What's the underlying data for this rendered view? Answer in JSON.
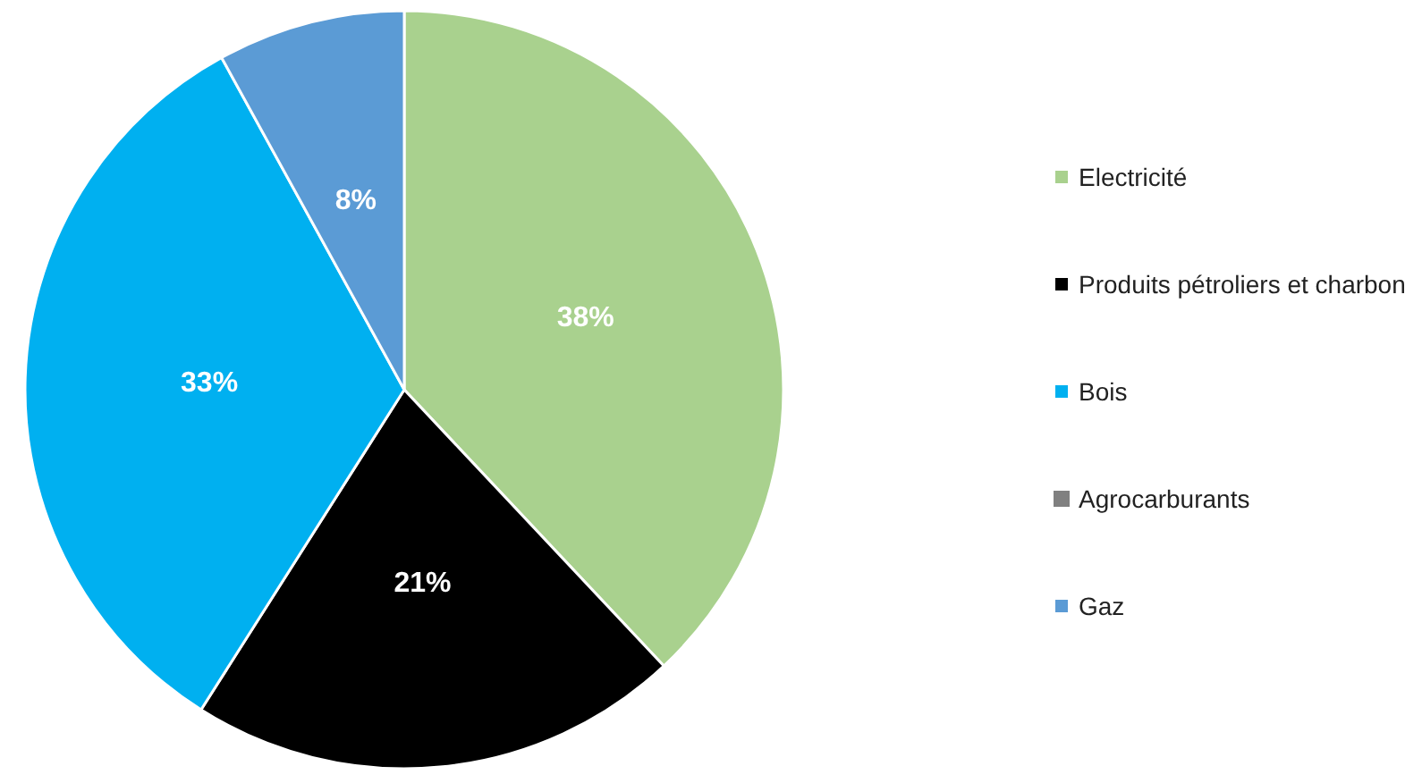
{
  "chart_data": {
    "type": "pie",
    "categories": [
      "Electricité",
      "Produits pétroliers et charbon",
      "Bois",
      "Agrocarburants",
      "Gaz"
    ],
    "values": [
      38,
      21,
      33,
      0,
      8
    ],
    "colors": [
      "#a9d18e",
      "#000000",
      "#00b0f0",
      "#808080",
      "#5b9bd5"
    ],
    "value_labels": [
      "38%",
      "21%",
      "33%",
      null,
      "8%"
    ],
    "legend": "right"
  }
}
